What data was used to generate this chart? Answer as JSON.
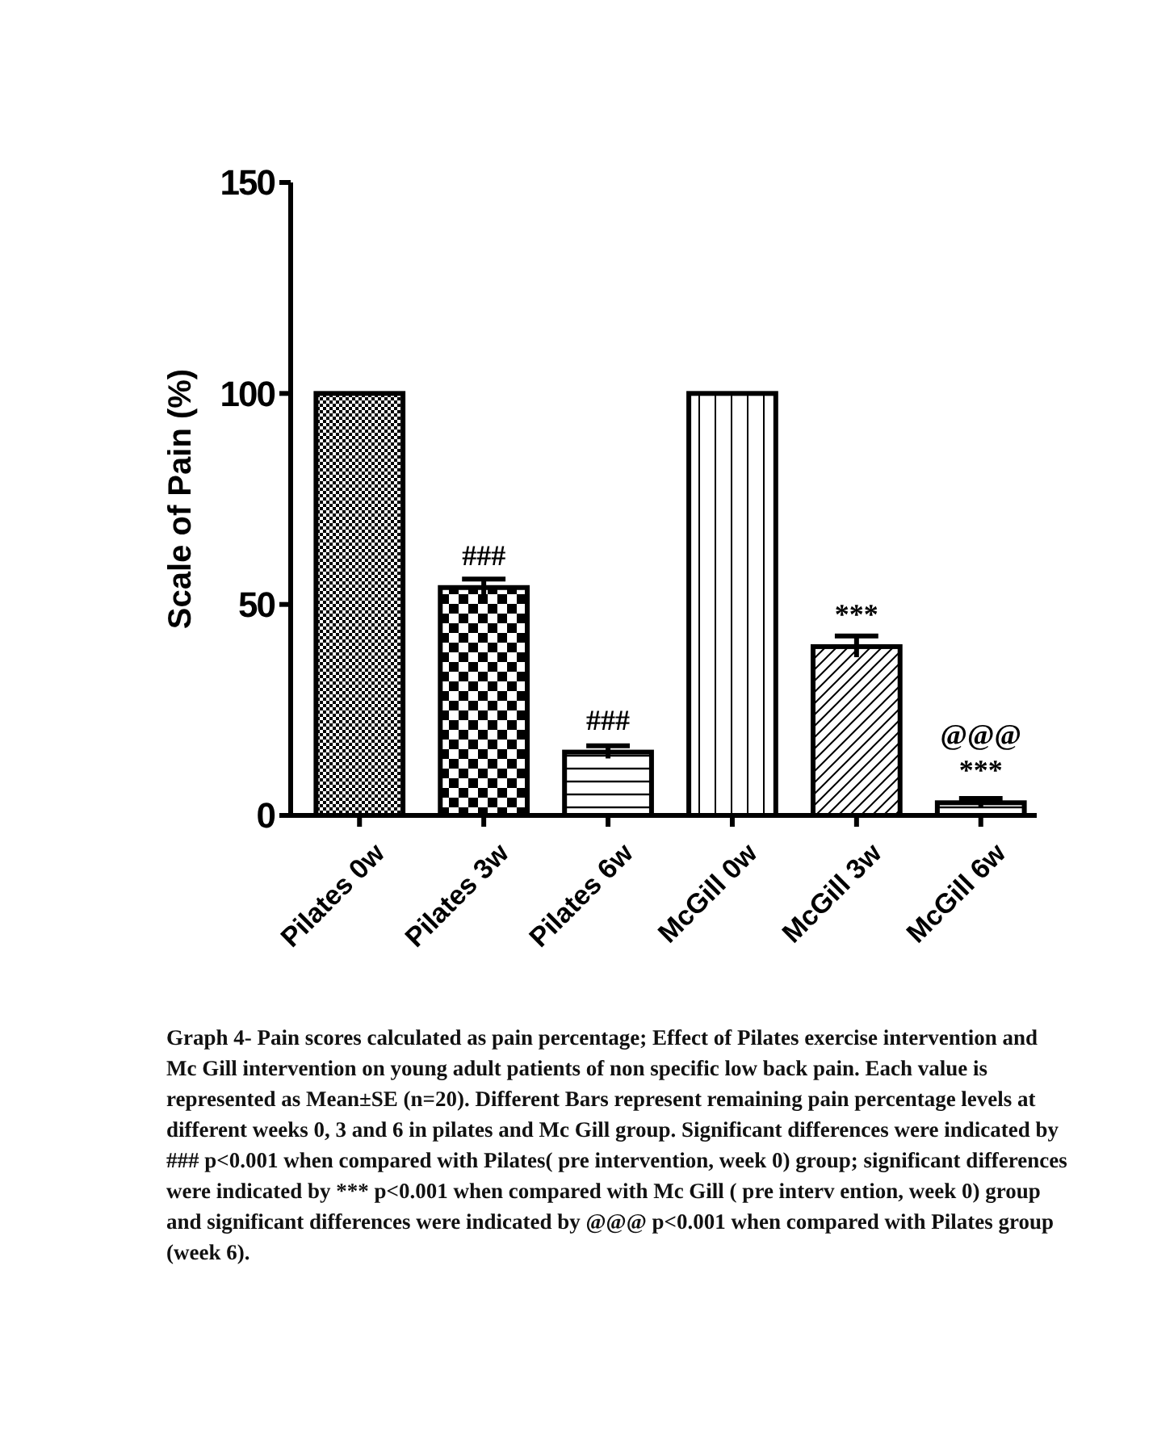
{
  "chart_data": {
    "type": "bar",
    "ylabel": "Scale of Pain (%)",
    "categories": [
      "Pilates 0w",
      "Pilates 3w",
      "Pilates 6w",
      "McGill 0w",
      "McGill 3w",
      "McGill 6w"
    ],
    "values": [
      100,
      54,
      15,
      100,
      40,
      3
    ],
    "errors": [
      null,
      2,
      1.5,
      null,
      2.5,
      1
    ],
    "color": "#000000",
    "ylim": [
      0,
      150
    ],
    "yticks": [
      0,
      50,
      100,
      150
    ],
    "grid": false,
    "annotations": [
      {
        "text": "###",
        "x": "Pilates 3w",
        "y": 54
      },
      {
        "text": "###",
        "x": "Pilates 6w",
        "y": 15
      },
      {
        "text": "***",
        "x": "McGill 3w",
        "y": 40
      },
      {
        "text": "***",
        "x": "McGill 6w",
        "y": 3
      },
      {
        "text": "@@@",
        "x": "McGill 6w",
        "y": 3
      },
      "Graph 4- Pain scores calculated as pain percentage; Effect of Pilates exercise intervention and Mc Gill intervention on young adult patients of non specific low back pain. Each value is represented as Mean±SE (n=20). Different Bars represent remaining pain percentage levels at different weeks 0, 3 and 6 in pilates and Mc Gill group. Significant differences were indicated by ### p<0.001 when compared with Pilates( pre intervention, week 0) group; significant differences were indicated by *** p<0.001 when compared with Mc Gill ( pre interv ention, week 0) group and significant differences were indicated by @@@ p<0.001 when compared with Pilates group (week 6)."
    ]
  }
}
